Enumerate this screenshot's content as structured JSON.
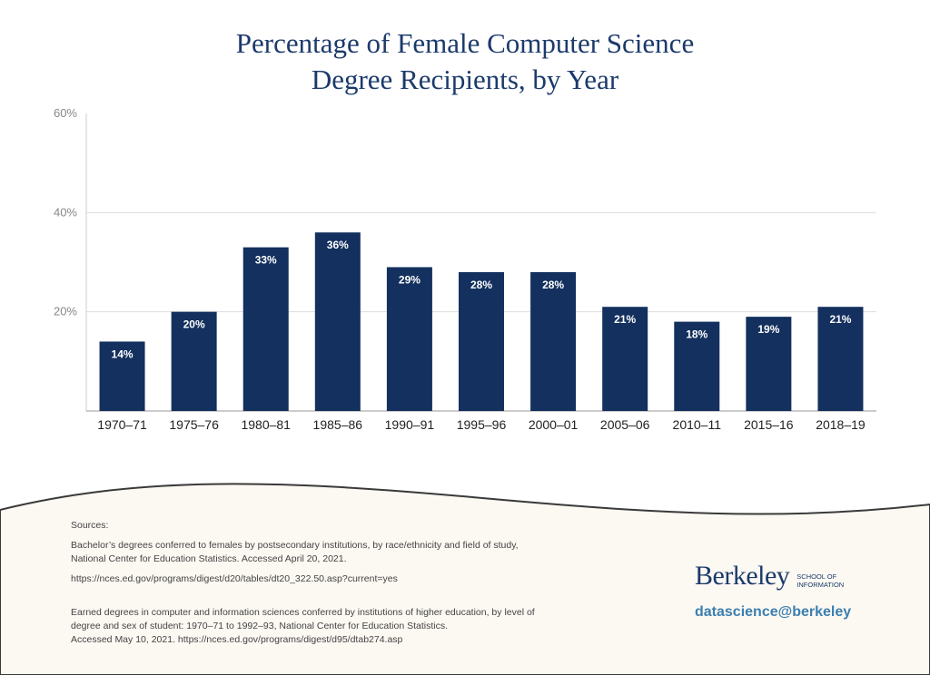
{
  "chart_data": {
    "type": "bar",
    "title_line1": "Percentage of Female Computer Science",
    "title_line2": "Degree Recipients, by Year",
    "categories": [
      "1970–71",
      "1975–76",
      "1980–81",
      "1985–86",
      "1990–91",
      "1995–96",
      "2000–01",
      "2005–06",
      "2010–11",
      "2015–16",
      "2018–19"
    ],
    "values": [
      14,
      20,
      33,
      36,
      29,
      28,
      28,
      21,
      18,
      19,
      21
    ],
    "data_labels": [
      "14%",
      "20%",
      "33%",
      "36%",
      "29%",
      "28%",
      "28%",
      "21%",
      "18%",
      "19%",
      "21%"
    ],
    "yticks": [
      "20%",
      "40%",
      "60%"
    ],
    "ytick_values": [
      20,
      40,
      60
    ],
    "ylim": [
      0,
      60
    ],
    "grid": true,
    "bar_color": "#13305e",
    "xlabel": "",
    "ylabel": ""
  },
  "footer": {
    "sources_heading": "Sources:",
    "source1_line1": "Bachelor’s degrees conferred to females by postsecondary institutions, by race/ethnicity and field of study,",
    "source1_line2": "National Center for Education Statistics. Accessed April 20, 2021.",
    "source1_url": "https://nces.ed.gov/programs/digest/d20/tables/dt20_322.50.asp?current=yes",
    "source2_line1": "Earned degrees in computer and information sciences conferred by institutions of higher education, by level of",
    "source2_line2": "degree and sex of student: 1970–71 to 1992–93, National Center for Education Statistics.",
    "source2_line3": "Accessed May 10, 2021. https://nces.ed.gov/programs/digest/d95/dtab274.asp",
    "logo_berkeley": "Berkeley",
    "logo_school_1": "SCHOOL OF",
    "logo_school_2": "INFORMATION",
    "handle": "datascience@berkeley",
    "background_color": "#fcf8f2"
  }
}
